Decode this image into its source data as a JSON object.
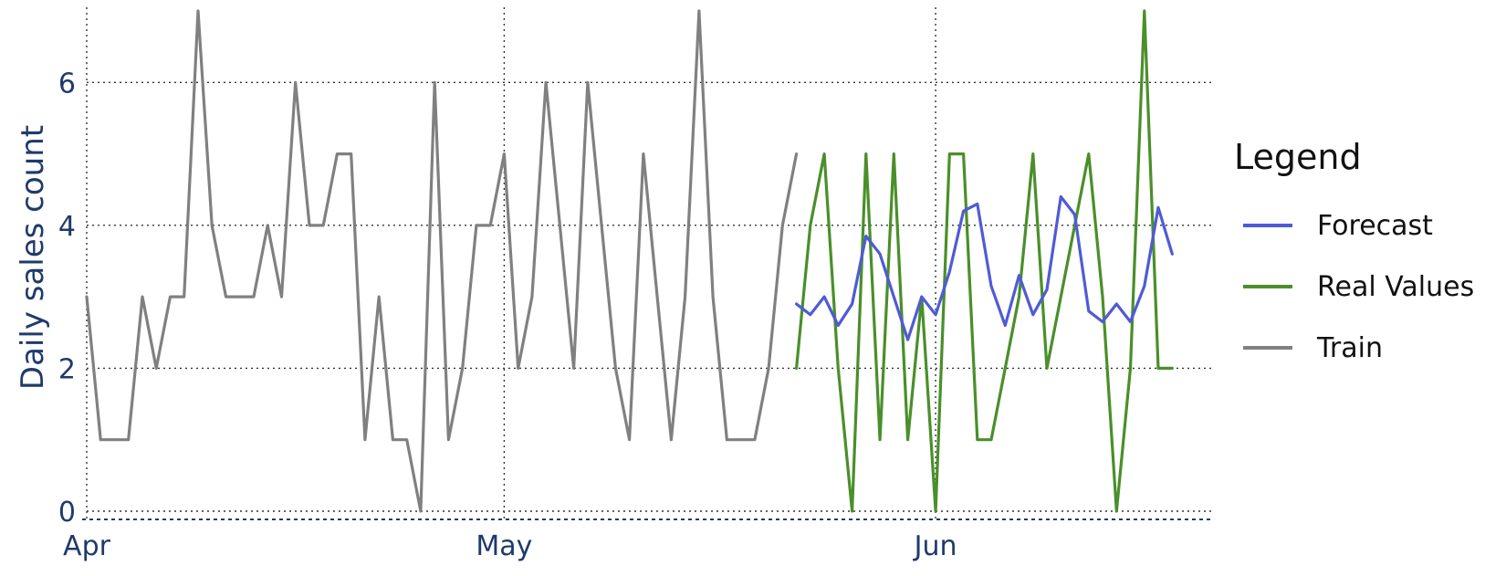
{
  "chart_data": {
    "type": "line",
    "title": "",
    "xlabel": "",
    "ylabel": "Daily sales count",
    "ylim": [
      0,
      7
    ],
    "xlim": [
      "2023-04-01",
      "2023-06-21"
    ],
    "x_ticks": [
      {
        "date": "2023-04-01",
        "label": "Apr"
      },
      {
        "date": "2023-05-01",
        "label": "May"
      },
      {
        "date": "2023-06-01",
        "label": "Jun"
      }
    ],
    "y_ticks": [
      0,
      2,
      4,
      6
    ],
    "grid": true,
    "legend": {
      "title": "Legend",
      "placement": "right",
      "entries": [
        "Forecast",
        "Real Values",
        "Train"
      ]
    },
    "series": [
      {
        "name": "Train",
        "color": "#808080",
        "start_date": "2023-04-01",
        "values": [
          3,
          1,
          1,
          1,
          3,
          2,
          3,
          3,
          7,
          4,
          3,
          3,
          3,
          4,
          3,
          6,
          4,
          4,
          5,
          5,
          1,
          3,
          1,
          1,
          0,
          6,
          1,
          2,
          4,
          4,
          5,
          2,
          3,
          6,
          4,
          2,
          6,
          4,
          2,
          1,
          5,
          3,
          1,
          3,
          7,
          3,
          1,
          1,
          1,
          2,
          4,
          5
        ]
      },
      {
        "name": "Real Values",
        "color": "#4a8f2a",
        "start_date": "2023-05-22",
        "values": [
          2,
          4,
          5,
          2,
          0,
          5,
          1,
          5,
          1,
          3,
          0,
          5,
          5,
          1,
          1,
          2,
          3,
          5,
          2,
          3,
          4,
          5,
          3,
          0,
          2,
          7,
          2,
          2
        ]
      },
      {
        "name": "Forecast",
        "color": "#4f5bd5",
        "start_date": "2023-05-22",
        "values": [
          2.9,
          2.75,
          3.0,
          2.6,
          2.9,
          3.85,
          3.6,
          3.0,
          2.4,
          3.0,
          2.75,
          3.35,
          4.2,
          4.3,
          3.15,
          2.6,
          3.3,
          2.75,
          3.1,
          4.4,
          4.15,
          2.8,
          2.65,
          2.9,
          2.65,
          3.15,
          4.25,
          3.6
        ]
      }
    ]
  }
}
